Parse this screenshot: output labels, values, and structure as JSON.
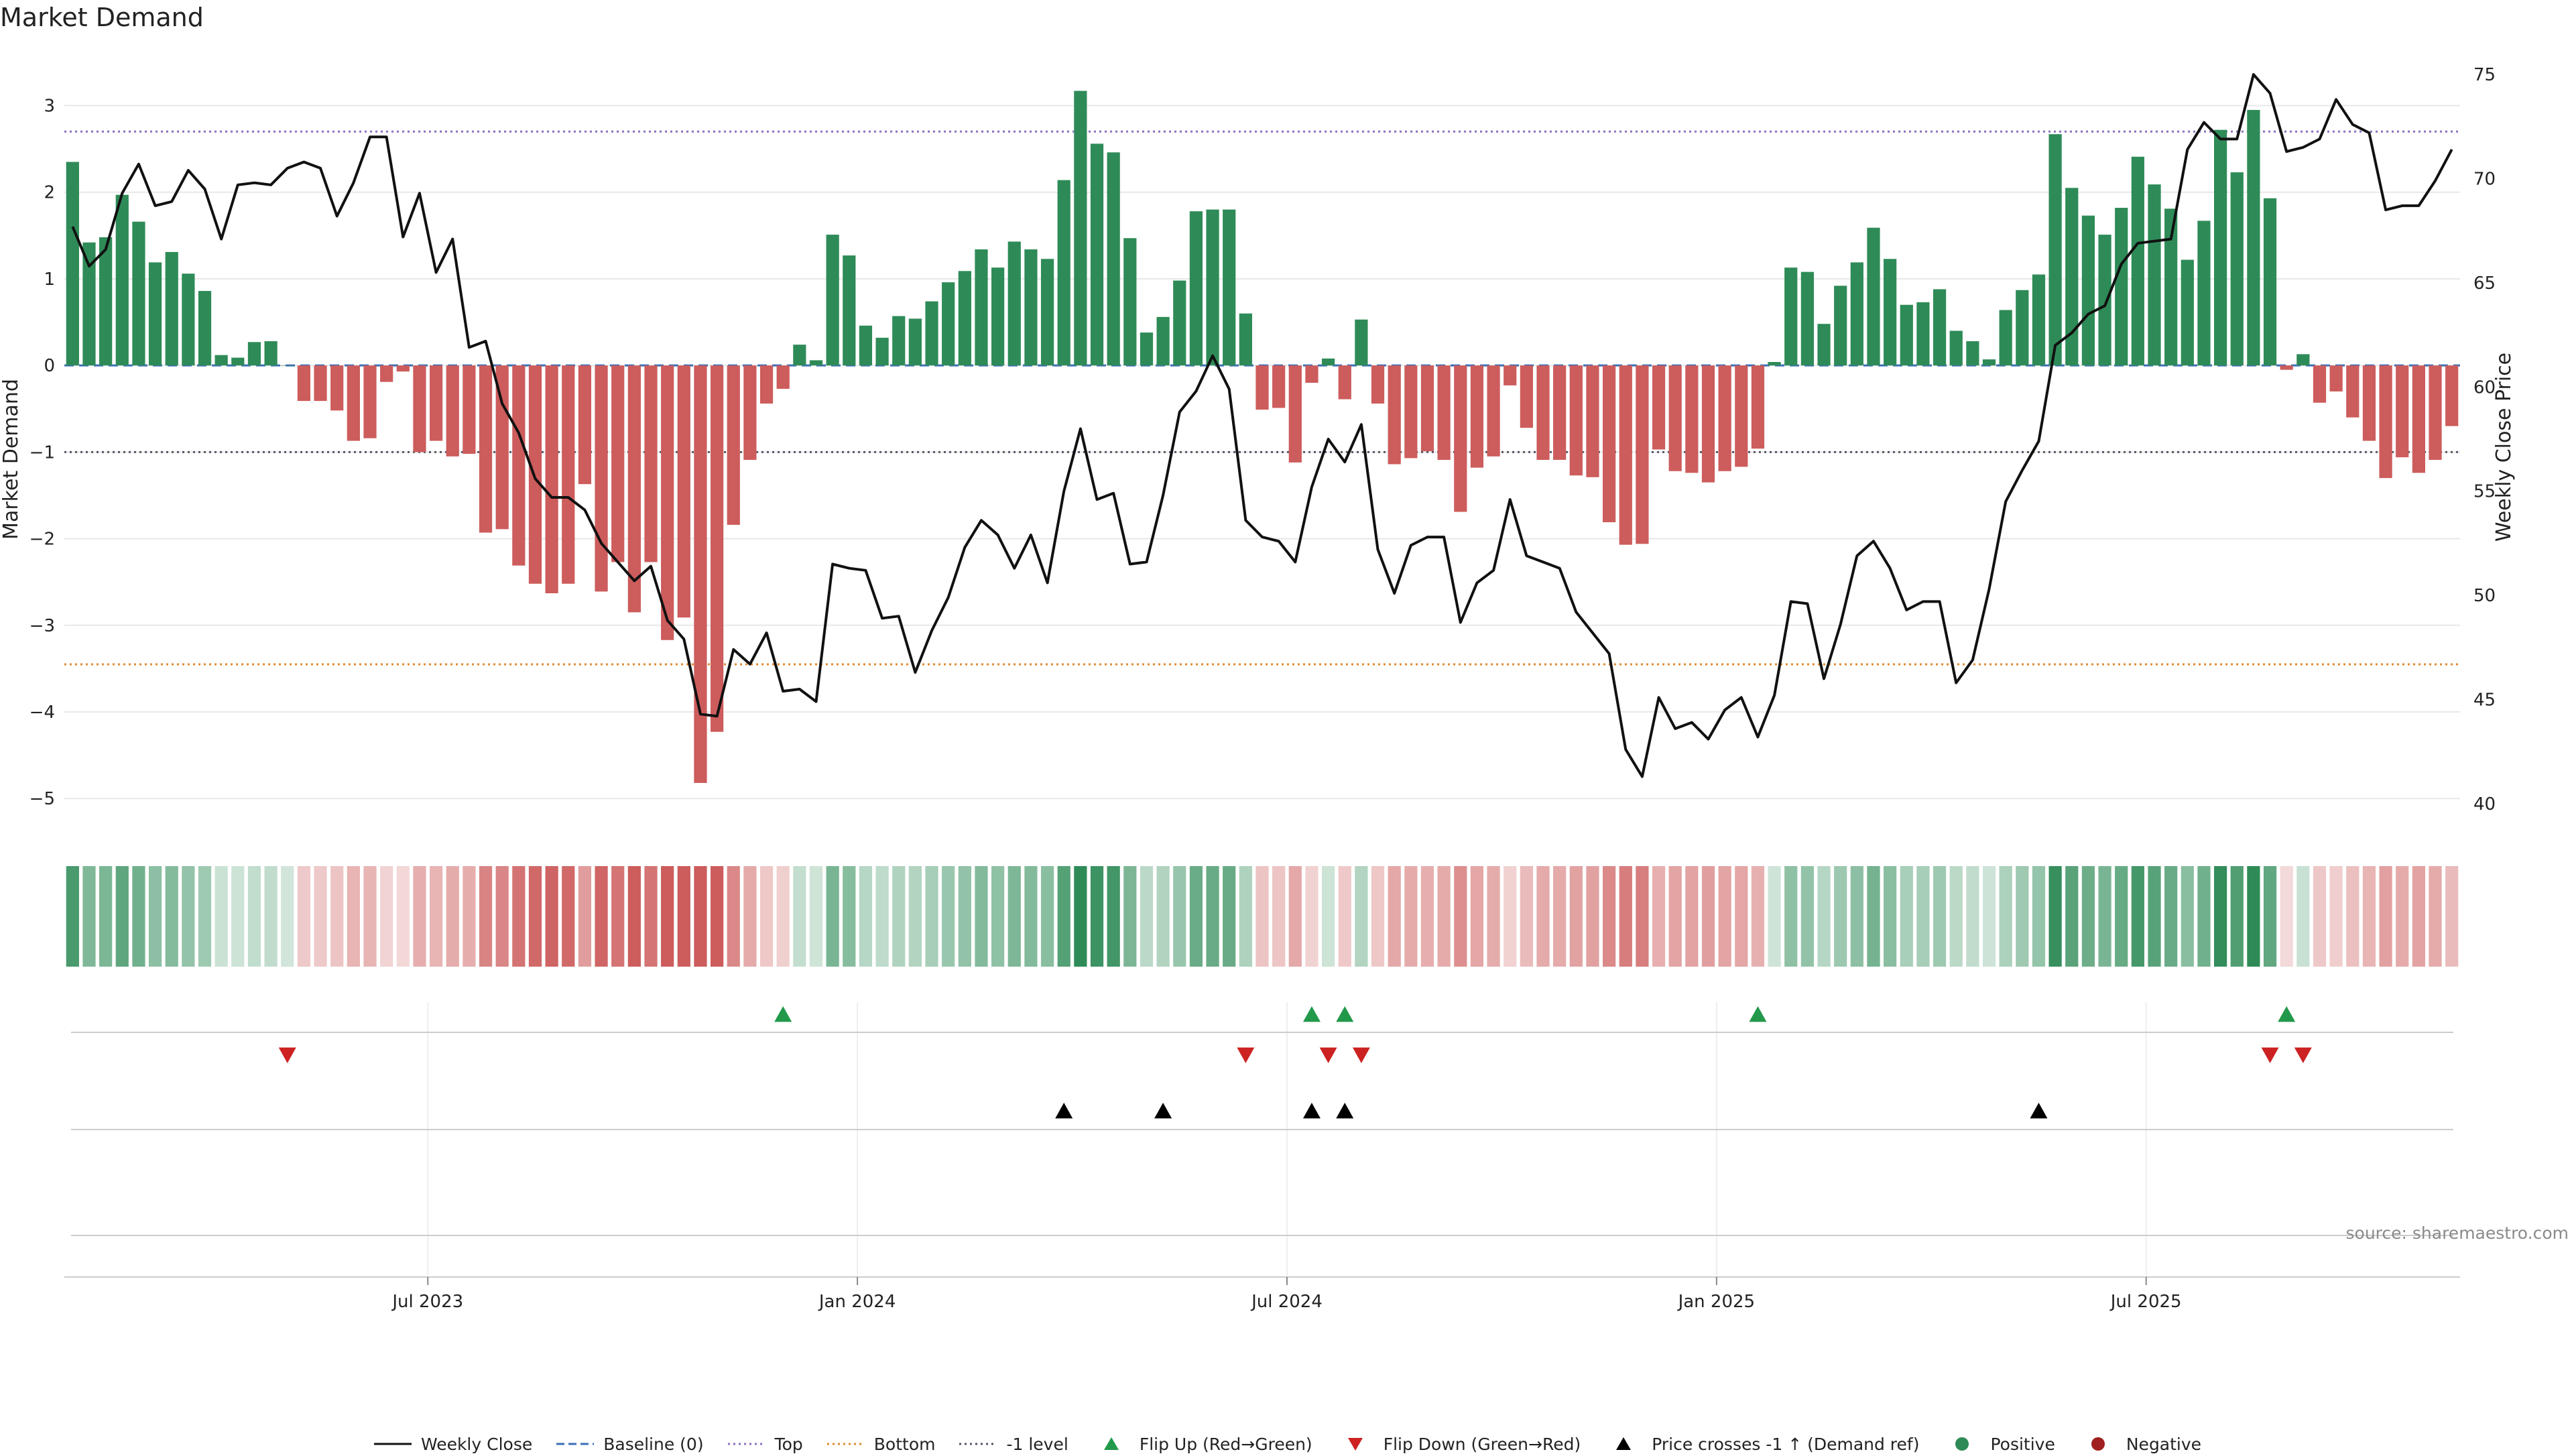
{
  "title": "Market Demand",
  "source": "source: sharemaestro.com",
  "colors": {
    "positive": "#2e8b57",
    "negative": "#cd5c5c",
    "price": "#111111",
    "baseline": "#3b6fb6",
    "top": "#8a6fc0",
    "bottom": "#e08a2e",
    "minus1": "#555566",
    "flip_up": "#22994a",
    "flip_down": "#cc2222",
    "cross": "#000000",
    "grid": "#e8e8e8"
  },
  "chart_data": {
    "type": "bar",
    "title": "Market Demand",
    "ylabel": "Market Demand",
    "y2label": "Weekly Close Price",
    "ylim": [
      -5.3,
      3.6
    ],
    "y2lim": [
      39.0,
      76.0
    ],
    "yticks": [
      3,
      2,
      1,
      0,
      -1,
      -2,
      -3,
      -4,
      -5
    ],
    "y2ticks": [
      75,
      70,
      65,
      60,
      55,
      50,
      45,
      40
    ],
    "ytick_labels": [
      "3",
      "2",
      "1",
      "0",
      "−1",
      "−2",
      "−3",
      "−4",
      "−5"
    ],
    "y2tick_labels": [
      "75",
      "70",
      "65",
      "60",
      "55",
      "50",
      "45",
      "40"
    ],
    "reference_lines": {
      "top": 2.7,
      "bottom": -3.45,
      "minus1": -1.0,
      "baseline": 0
    },
    "x_tick_labels": [
      "Jul 2023",
      "Jan 2024",
      "Jul 2024",
      "Jan 2025",
      "Jul 2025"
    ],
    "x_tick_index": [
      22,
      48,
      74,
      100,
      126
    ],
    "demand": [
      2.35,
      1.42,
      1.48,
      1.97,
      1.66,
      1.19,
      1.31,
      1.06,
      0.86,
      0.12,
      0.09,
      0.27,
      0.28,
      0.0,
      -0.41,
      -0.41,
      -0.52,
      -0.87,
      -0.84,
      -0.19,
      -0.07,
      -1.0,
      -0.87,
      -1.05,
      -1.02,
      -1.93,
      -1.89,
      -2.31,
      -2.52,
      -2.63,
      -2.52,
      -1.37,
      -2.61,
      -2.27,
      -2.85,
      -2.27,
      -3.17,
      -2.91,
      -4.82,
      -4.23,
      -1.84,
      -1.09,
      -0.44,
      -0.27,
      0.24,
      0.06,
      1.51,
      1.27,
      0.46,
      0.32,
      0.57,
      0.54,
      0.74,
      0.96,
      1.09,
      1.34,
      1.13,
      1.43,
      1.34,
      1.23,
      2.14,
      3.17,
      2.56,
      2.46,
      1.47,
      0.38,
      0.56,
      0.98,
      1.78,
      1.8,
      1.8,
      0.6,
      -0.51,
      -0.49,
      -1.12,
      -0.2,
      0.08,
      -0.39,
      0.53,
      -0.44,
      -1.14,
      -1.07,
      -0.99,
      -1.09,
      -1.69,
      -1.18,
      -1.05,
      -0.23,
      -0.72,
      -1.09,
      -1.09,
      -1.27,
      -1.29,
      -1.81,
      -2.07,
      -2.06,
      -0.97,
      -1.22,
      -1.24,
      -1.35,
      -1.22,
      -1.17,
      -0.96,
      0.04,
      1.13,
      1.08,
      0.48,
      0.92,
      1.19,
      1.59,
      1.23,
      0.7,
      0.73,
      0.88,
      0.4,
      0.28,
      0.07,
      0.64,
      0.87,
      1.05,
      2.67,
      2.05,
      1.73,
      1.51,
      1.82,
      2.41,
      2.09,
      1.81,
      1.22,
      1.67,
      2.72,
      2.23,
      2.95,
      1.93,
      -0.05,
      0.13,
      -0.43,
      -0.3,
      -0.6,
      -0.87,
      -1.3,
      -1.06,
      -1.24,
      -1.09,
      -0.7
    ],
    "weekly_close": [
      67.7,
      65.8,
      66.6,
      69.3,
      70.7,
      68.7,
      68.9,
      70.4,
      69.5,
      67.1,
      69.7,
      69.8,
      69.7,
      70.5,
      70.8,
      70.5,
      68.2,
      69.8,
      72.0,
      72.0,
      67.2,
      69.3,
      65.5,
      67.1,
      61.9,
      62.2,
      59.2,
      57.8,
      55.6,
      54.7,
      54.7,
      54.1,
      52.5,
      51.6,
      50.7,
      51.4,
      48.8,
      47.9,
      44.3,
      44.2,
      47.4,
      46.7,
      48.2,
      45.4,
      45.5,
      44.9,
      51.5,
      51.3,
      51.2,
      48.9,
      49.0,
      46.3,
      48.3,
      49.9,
      52.3,
      53.6,
      52.9,
      51.3,
      52.9,
      50.6,
      55.0,
      58.0,
      54.6,
      54.9,
      51.5,
      51.6,
      54.8,
      58.8,
      59.8,
      61.5,
      59.9,
      53.6,
      52.8,
      52.6,
      51.6,
      55.2,
      57.5,
      56.4,
      58.2,
      52.2,
      50.1,
      52.4,
      52.8,
      52.8,
      48.7,
      50.6,
      51.2,
      54.6,
      51.9,
      51.6,
      51.3,
      49.2,
      48.2,
      47.2,
      42.6,
      41.3,
      45.1,
      43.6,
      43.9,
      43.1,
      44.5,
      45.1,
      43.2,
      45.2,
      49.7,
      49.6,
      46.0,
      48.6,
      51.9,
      52.6,
      51.3,
      49.3,
      49.7,
      49.7,
      45.8,
      46.9,
      50.3,
      54.5,
      56.0,
      57.4,
      62.0,
      62.6,
      63.5,
      63.9,
      65.9,
      66.9,
      67.0,
      67.1,
      71.4,
      72.7,
      71.9,
      71.9,
      75.0,
      74.1,
      71.3,
      71.5,
      71.9,
      73.8,
      72.6,
      72.2,
      68.5,
      68.7,
      68.7,
      69.9,
      71.4
    ],
    "flip_up_index": [
      43,
      75,
      77,
      102,
      134
    ],
    "flip_down_index": [
      13,
      71,
      76,
      78,
      133,
      135
    ],
    "cross_up_index": [
      60,
      66,
      75,
      77,
      119
    ],
    "series": [
      {
        "name": "Weekly Close"
      },
      {
        "name": "Baseline (0)"
      },
      {
        "name": "Top"
      },
      {
        "name": "Bottom"
      },
      {
        "name": "-1 level"
      },
      {
        "name": "Flip Up (Red→Green)"
      },
      {
        "name": "Flip Down (Green→Red)"
      },
      {
        "name": "Price crosses -1 ↑ (Demand ref)"
      },
      {
        "name": "Positive"
      },
      {
        "name": "Negative"
      }
    ]
  },
  "legend": [
    {
      "label": "Weekly Close",
      "icon": "solid-line-icon",
      "color": "#111111"
    },
    {
      "label": "Baseline (0)",
      "icon": "dashed-line-icon",
      "color": "#3b6fb6"
    },
    {
      "label": "Top",
      "icon": "dotted-line-icon",
      "color": "#8a6fc0"
    },
    {
      "label": "Bottom",
      "icon": "dotted-line-icon",
      "color": "#e08a2e"
    },
    {
      "label": "-1 level",
      "icon": "dotted-line-icon",
      "color": "#555566"
    },
    {
      "label": "Flip Up (Red→Green)",
      "icon": "triangle-up-icon",
      "color": "#22994a"
    },
    {
      "label": "Flip Down (Green→Red)",
      "icon": "triangle-down-icon",
      "color": "#cc2222"
    },
    {
      "label": "Price crosses -1 ↑ (Demand ref)",
      "icon": "triangle-up-icon",
      "color": "#000000"
    },
    {
      "label": "Positive",
      "icon": "circle-icon",
      "color": "#2e8b57"
    },
    {
      "label": "Negative",
      "icon": "circle-icon",
      "color": "#a02020"
    }
  ]
}
